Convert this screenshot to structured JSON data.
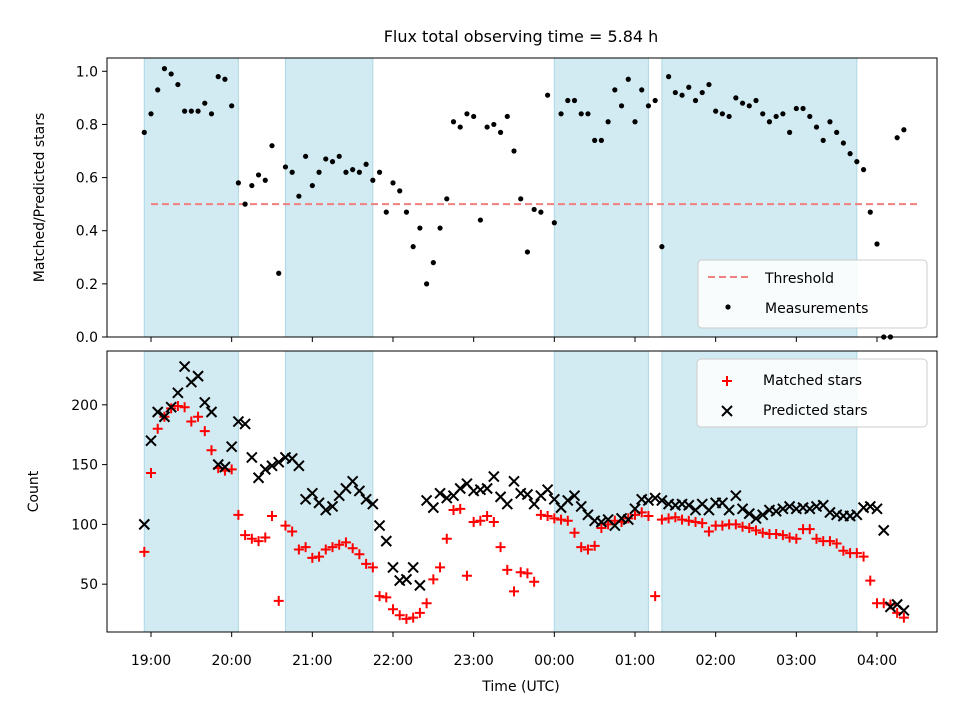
{
  "chart_data": [
    {
      "type": "scatter",
      "title": "Flux total observing time = 5.84 h",
      "ylabel": "Matched/Predicted stars",
      "xlabel": "",
      "ylim": [
        0,
        1.05
      ],
      "yticks": [
        "0.0",
        "0.2",
        "0.4",
        "0.6",
        "0.8",
        "1.0"
      ],
      "grid": false,
      "legend_position": "lower right",
      "legend": [
        "Threshold",
        "Measurements"
      ],
      "threshold": {
        "name": "Threshold",
        "value": 0.5,
        "x_start": "19:00",
        "x_end": "04:30",
        "color": "#f08080",
        "style": "dashed"
      },
      "shaded_intervals": [
        [
          "18:55",
          "20:05"
        ],
        [
          "20:40",
          "21:45"
        ],
        [
          "00:00",
          "01:10"
        ],
        [
          "01:20",
          "03:45"
        ]
      ],
      "shade_color": "#add8e6",
      "series": [
        {
          "name": "Measurements",
          "color": "#000000",
          "points": [
            [
              "18:55",
              0.77
            ],
            [
              "19:00",
              0.84
            ],
            [
              "19:05",
              0.93
            ],
            [
              "19:10",
              1.01
            ],
            [
              "19:15",
              0.99
            ],
            [
              "19:20",
              0.95
            ],
            [
              "19:25",
              0.85
            ],
            [
              "19:30",
              0.85
            ],
            [
              "19:35",
              0.85
            ],
            [
              "19:40",
              0.88
            ],
            [
              "19:45",
              0.84
            ],
            [
              "19:50",
              0.98
            ],
            [
              "19:55",
              0.97
            ],
            [
              "20:00",
              0.87
            ],
            [
              "20:05",
              0.58
            ],
            [
              "20:10",
              0.5
            ],
            [
              "20:15",
              0.57
            ],
            [
              "20:20",
              0.61
            ],
            [
              "20:25",
              0.59
            ],
            [
              "20:30",
              0.72
            ],
            [
              "20:35",
              0.24
            ],
            [
              "20:40",
              0.64
            ],
            [
              "20:45",
              0.62
            ],
            [
              "20:50",
              0.53
            ],
            [
              "20:55",
              0.68
            ],
            [
              "21:00",
              0.57
            ],
            [
              "21:05",
              0.62
            ],
            [
              "21:10",
              0.67
            ],
            [
              "21:15",
              0.66
            ],
            [
              "21:20",
              0.68
            ],
            [
              "21:25",
              0.62
            ],
            [
              "21:30",
              0.63
            ],
            [
              "21:35",
              0.62
            ],
            [
              "21:40",
              0.65
            ],
            [
              "21:45",
              0.59
            ],
            [
              "21:50",
              0.62
            ],
            [
              "21:55",
              0.47
            ],
            [
              "22:00",
              0.58
            ],
            [
              "22:05",
              0.55
            ],
            [
              "22:10",
              0.47
            ],
            [
              "22:15",
              0.34
            ],
            [
              "22:20",
              0.41
            ],
            [
              "22:25",
              0.2
            ],
            [
              "22:30",
              0.28
            ],
            [
              "22:35",
              0.41
            ],
            [
              "22:40",
              0.52
            ],
            [
              "22:45",
              0.81
            ],
            [
              "22:50",
              0.79
            ],
            [
              "22:55",
              0.84
            ],
            [
              "23:00",
              0.83
            ],
            [
              "23:05",
              0.44
            ],
            [
              "23:10",
              0.79
            ],
            [
              "23:15",
              0.8
            ],
            [
              "23:20",
              0.77
            ],
            [
              "23:25",
              0.83
            ],
            [
              "23:30",
              0.7
            ],
            [
              "23:35",
              0.52
            ],
            [
              "23:40",
              0.32
            ],
            [
              "23:45",
              0.48
            ],
            [
              "23:50",
              0.47
            ],
            [
              "23:55",
              0.91
            ],
            [
              "00:00",
              0.43
            ],
            [
              "00:05",
              0.84
            ],
            [
              "00:10",
              0.89
            ],
            [
              "00:15",
              0.89
            ],
            [
              "00:20",
              0.84
            ],
            [
              "00:25",
              0.84
            ],
            [
              "00:30",
              0.74
            ],
            [
              "00:35",
              0.74
            ],
            [
              "00:40",
              0.81
            ],
            [
              "00:45",
              0.93
            ],
            [
              "00:50",
              0.87
            ],
            [
              "00:55",
              0.97
            ],
            [
              "01:00",
              0.81
            ],
            [
              "01:05",
              0.93
            ],
            [
              "01:10",
              0.87
            ],
            [
              "01:15",
              0.89
            ],
            [
              "01:20",
              0.34
            ],
            [
              "01:25",
              0.98
            ],
            [
              "01:30",
              0.92
            ],
            [
              "01:35",
              0.91
            ],
            [
              "01:40",
              0.94
            ],
            [
              "01:45",
              0.89
            ],
            [
              "01:50",
              0.92
            ],
            [
              "01:55",
              0.95
            ],
            [
              "02:00",
              0.85
            ],
            [
              "02:05",
              0.84
            ],
            [
              "02:10",
              0.83
            ],
            [
              "02:15",
              0.9
            ],
            [
              "02:20",
              0.88
            ],
            [
              "02:25",
              0.87
            ],
            [
              "02:30",
              0.89
            ],
            [
              "02:35",
              0.84
            ],
            [
              "02:40",
              0.81
            ],
            [
              "02:45",
              0.83
            ],
            [
              "02:50",
              0.84
            ],
            [
              "02:55",
              0.77
            ],
            [
              "03:00",
              0.86
            ],
            [
              "03:05",
              0.86
            ],
            [
              "03:10",
              0.83
            ],
            [
              "03:15",
              0.79
            ],
            [
              "03:20",
              0.74
            ],
            [
              "03:25",
              0.81
            ],
            [
              "03:30",
              0.77
            ],
            [
              "03:35",
              0.73
            ],
            [
              "03:40",
              0.69
            ],
            [
              "03:45",
              0.66
            ],
            [
              "03:50",
              0.63
            ],
            [
              "03:55",
              0.47
            ],
            [
              "04:00",
              0.35
            ],
            [
              "04:05",
              0.0
            ],
            [
              "04:10",
              0.0
            ],
            [
              "04:15",
              0.75
            ],
            [
              "04:20",
              0.78
            ]
          ]
        }
      ]
    },
    {
      "type": "scatter",
      "title": "",
      "xlabel": "Time (UTC)",
      "ylabel": "Count",
      "ylim": [
        10,
        245
      ],
      "yticks": [
        "50",
        "100",
        "150",
        "200"
      ],
      "xticks": [
        "19:00",
        "20:00",
        "21:00",
        "22:00",
        "23:00",
        "00:00",
        "01:00",
        "02:00",
        "03:00",
        "04:00"
      ],
      "grid": false,
      "legend_position": "upper right",
      "legend": [
        "Matched stars",
        "Predicted stars"
      ],
      "shaded_intervals": [
        [
          "18:55",
          "20:05"
        ],
        [
          "20:40",
          "21:45"
        ],
        [
          "00:00",
          "01:10"
        ],
        [
          "01:20",
          "03:45"
        ]
      ],
      "shade_color": "#add8e6",
      "series": [
        {
          "name": "Matched stars",
          "marker": "+",
          "color": "#ff0000",
          "x": [
            "18:55",
            "19:00",
            "19:05",
            "19:10",
            "19:15",
            "19:20",
            "19:25",
            "19:30",
            "19:35",
            "19:40",
            "19:45",
            "19:50",
            "19:55",
            "20:00",
            "20:05",
            "20:10",
            "20:15",
            "20:20",
            "20:25",
            "20:30",
            "20:35",
            "20:40",
            "20:45",
            "20:50",
            "20:55",
            "21:00",
            "21:05",
            "21:10",
            "21:15",
            "21:20",
            "21:25",
            "21:30",
            "21:35",
            "21:40",
            "21:45",
            "21:50",
            "21:55",
            "22:00",
            "22:05",
            "22:10",
            "22:15",
            "22:20",
            "22:25",
            "22:30",
            "22:35",
            "22:40",
            "22:45",
            "22:50",
            "22:55",
            "23:00",
            "23:05",
            "23:10",
            "23:15",
            "23:20",
            "23:25",
            "23:30",
            "23:35",
            "23:40",
            "23:45",
            "23:50",
            "23:55",
            "00:00",
            "00:05",
            "00:10",
            "00:15",
            "00:20",
            "00:25",
            "00:30",
            "00:35",
            "00:40",
            "00:45",
            "00:50",
            "00:55",
            "01:00",
            "01:05",
            "01:10",
            "01:15",
            "01:20",
            "01:25",
            "01:30",
            "01:35",
            "01:40",
            "01:45",
            "01:50",
            "01:55",
            "02:00",
            "02:05",
            "02:10",
            "02:15",
            "02:20",
            "02:25",
            "02:30",
            "02:35",
            "02:40",
            "02:45",
            "02:50",
            "02:55",
            "03:00",
            "03:05",
            "03:10",
            "03:15",
            "03:20",
            "03:25",
            "03:30",
            "03:35",
            "03:40",
            "03:45",
            "03:50",
            "03:55",
            "04:00",
            "04:05",
            "04:10",
            "04:15",
            "04:20"
          ],
          "values": [
            77,
            143,
            180,
            190,
            197,
            199,
            198,
            186,
            190,
            178,
            162,
            147,
            145,
            146,
            108,
            91,
            88,
            86,
            89,
            107,
            36,
            99,
            94,
            79,
            81,
            72,
            73,
            79,
            81,
            83,
            85,
            80,
            75,
            67,
            64,
            40,
            39,
            29,
            24,
            21,
            22,
            26,
            34,
            54,
            64,
            88,
            112,
            113,
            57,
            102,
            103,
            107,
            102,
            81,
            62,
            44,
            60,
            59,
            52,
            108,
            107,
            105,
            104,
            103,
            93,
            81,
            79,
            82,
            97,
            100,
            103,
            102,
            105,
            108,
            110,
            107,
            40,
            104,
            105,
            106,
            104,
            103,
            102,
            101,
            94,
            99,
            99,
            100,
            100,
            98,
            97,
            95,
            93,
            92,
            92,
            91,
            89,
            88,
            96,
            96,
            88,
            86,
            86,
            84,
            78,
            76,
            76,
            73,
            53,
            34,
            34,
            33,
            26,
            22
          ]
        },
        {
          "name": "Predicted stars",
          "marker": "x",
          "color": "#000000",
          "x": [
            "18:55",
            "19:00",
            "19:05",
            "19:10",
            "19:15",
            "19:20",
            "19:25",
            "19:30",
            "19:35",
            "19:40",
            "19:45",
            "19:50",
            "19:55",
            "20:00",
            "20:05",
            "20:10",
            "20:15",
            "20:20",
            "20:25",
            "20:30",
            "20:35",
            "20:40",
            "20:45",
            "20:50",
            "20:55",
            "21:00",
            "21:05",
            "21:10",
            "21:15",
            "21:20",
            "21:25",
            "21:30",
            "21:35",
            "21:40",
            "21:45",
            "21:50",
            "21:55",
            "22:00",
            "22:05",
            "22:10",
            "22:15",
            "22:20",
            "22:25",
            "22:30",
            "22:35",
            "22:40",
            "22:45",
            "22:50",
            "22:55",
            "23:00",
            "23:05",
            "23:10",
            "23:15",
            "23:20",
            "23:25",
            "23:30",
            "23:35",
            "23:40",
            "23:45",
            "23:50",
            "23:55",
            "00:00",
            "00:05",
            "00:10",
            "00:15",
            "00:20",
            "00:25",
            "00:30",
            "00:35",
            "00:40",
            "00:45",
            "00:50",
            "00:55",
            "01:00",
            "01:05",
            "01:10",
            "01:15",
            "01:20",
            "01:25",
            "01:30",
            "01:35",
            "01:40",
            "01:45",
            "01:50",
            "01:55",
            "02:00",
            "02:05",
            "02:10",
            "02:15",
            "02:20",
            "02:25",
            "02:30",
            "02:35",
            "02:40",
            "02:45",
            "02:50",
            "02:55",
            "03:00",
            "03:05",
            "03:10",
            "03:15",
            "03:20",
            "03:25",
            "03:30",
            "03:35",
            "03:40",
            "03:45",
            "03:50",
            "03:55",
            "04:00",
            "04:05",
            "04:10",
            "04:15",
            "04:20"
          ],
          "values": [
            100,
            170,
            194,
            190,
            198,
            210,
            232,
            219,
            224,
            202,
            194,
            150,
            148,
            165,
            186,
            184,
            156,
            139,
            146,
            149,
            152,
            156,
            155,
            149,
            121,
            126,
            118,
            112,
            115,
            124,
            130,
            136,
            128,
            121,
            117,
            99,
            86,
            64,
            53,
            54,
            64,
            49,
            120,
            114,
            126,
            122,
            124,
            130,
            134,
            128,
            129,
            130,
            140,
            123,
            117,
            136,
            126,
            125,
            117,
            124,
            129,
            121,
            114,
            120,
            124,
            115,
            108,
            103,
            102,
            104,
            99,
            105,
            104,
            113,
            121,
            120,
            122,
            120,
            117,
            116,
            117,
            116,
            112,
            117,
            112,
            118,
            118,
            112,
            124,
            113,
            109,
            105,
            108,
            112,
            111,
            113,
            115,
            113,
            114,
            113,
            115,
            116,
            110,
            108,
            107,
            107,
            108,
            114,
            115,
            113,
            95,
            31,
            33,
            28
          ]
        }
      ]
    }
  ]
}
